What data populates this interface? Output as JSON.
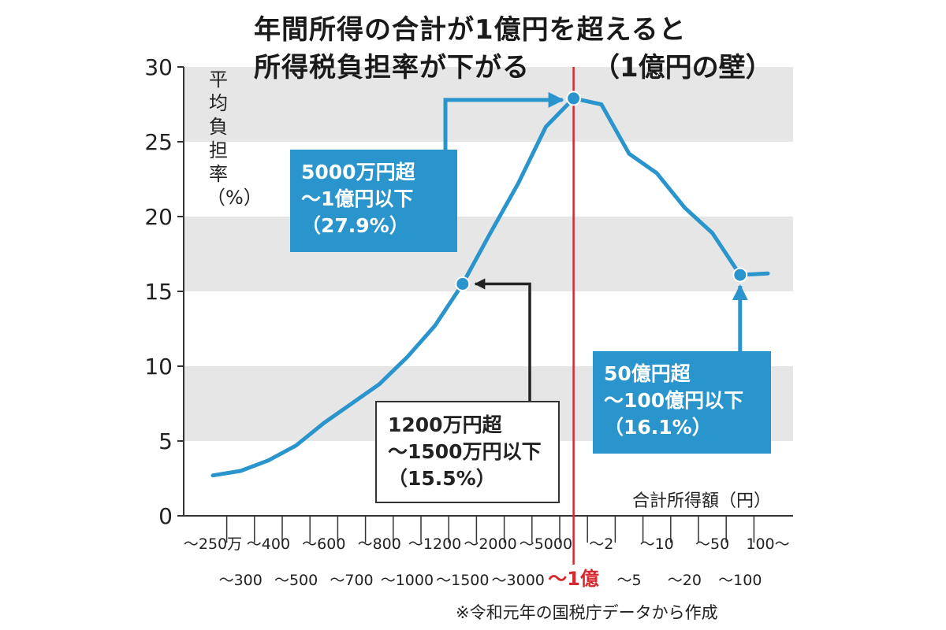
{
  "title_line1": "年間所得の合計が1億円を超えると",
  "title_line2": "所得税負担率が下がる",
  "title_note": "（1億円の壁）",
  "y_axis_label": "平均負担率（%）",
  "x_axis_title": "合計所得額（円）",
  "source_note": "※令和元年の国税庁データから作成",
  "colors": {
    "line": "#2a95cc",
    "band": "#e6e6e6",
    "threshold": "#d8282f",
    "axis": "#333333"
  },
  "callouts": {
    "peak": {
      "line1": "5000万円超",
      "line2": "～1億円以下",
      "line3": "（27.9%）"
    },
    "mid": {
      "line1": "1200万円超",
      "line2": "～1500万円以下",
      "line3": "（15.5%）"
    },
    "top": {
      "line1": "50億円超",
      "line2": "～100億円以下",
      "line3": "（16.1%）"
    }
  },
  "chart_data": {
    "type": "line",
    "title": "年間所得の合計が1億円を超えると所得税負担率が下がる（1億円の壁）",
    "xlabel": "合計所得額（円）",
    "ylabel": "平均負担率（%）",
    "ylim": [
      0,
      30
    ],
    "yticks": [
      0,
      5,
      10,
      15,
      20,
      25,
      30
    ],
    "categories": [
      "～250万",
      "～300",
      "～400",
      "～500",
      "～600",
      "～700",
      "～800",
      "～1000",
      "～1200",
      "～1500",
      "～2000",
      "～3000",
      "～5000",
      "～1億",
      "～2",
      "～5",
      "～10",
      "～20",
      "～50",
      "～100",
      "100～"
    ],
    "tick_labels_top": [
      "～250万",
      "～400",
      "～600",
      "～800",
      "～1200",
      "～2000",
      "～5000",
      "～2",
      "～10",
      "～50",
      "100～"
    ],
    "tick_labels_bottom": [
      "～300",
      "～500",
      "～700",
      "～1000",
      "～1500",
      "～3000",
      "～1億",
      "～5",
      "～20",
      "～100"
    ],
    "threshold_label": "～1億",
    "series": [
      {
        "name": "平均負担率",
        "values": [
          2.7,
          3.0,
          3.7,
          4.7,
          6.2,
          7.5,
          8.8,
          10.6,
          12.7,
          15.5,
          18.9,
          22.2,
          26.0,
          27.9,
          27.5,
          24.2,
          22.9,
          20.6,
          18.9,
          16.1,
          16.2
        ]
      }
    ],
    "highlighted_points": [
      {
        "category": "～1500",
        "value": 15.5
      },
      {
        "category": "～1億",
        "value": 27.9
      },
      {
        "category": "～100",
        "value": 16.1
      }
    ]
  }
}
